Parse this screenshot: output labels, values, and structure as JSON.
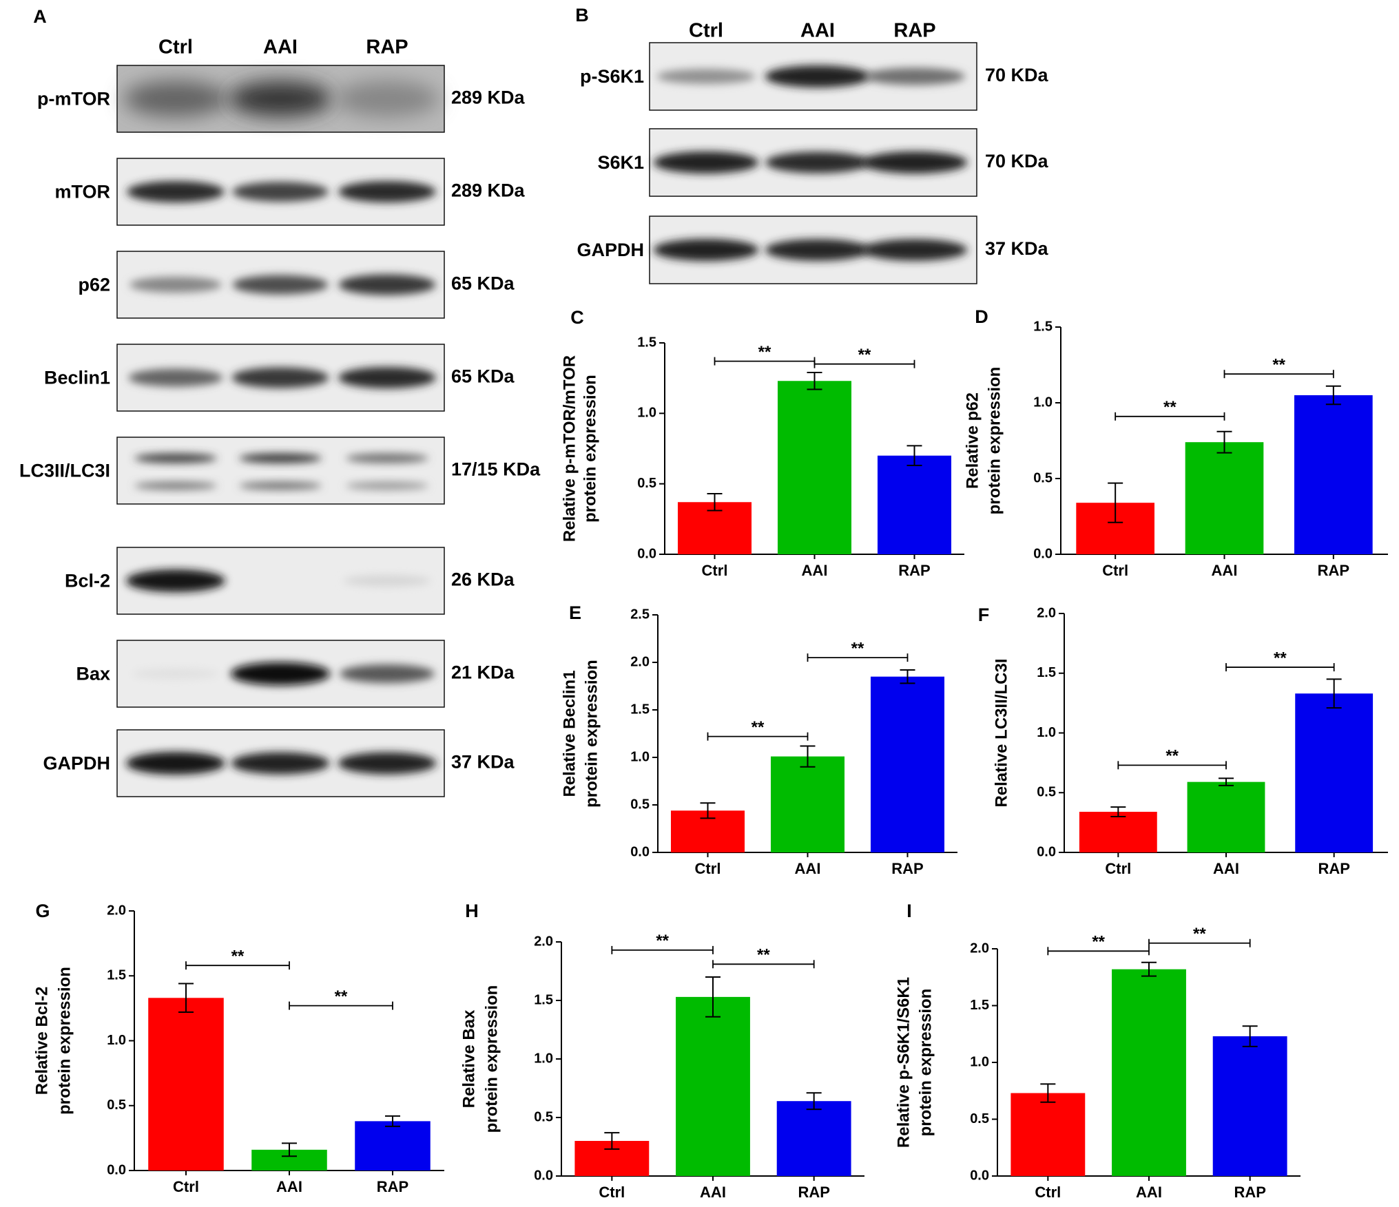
{
  "colors": {
    "Ctrl": "#ff0000",
    "AAI": "#00bb00",
    "RAP": "#0000ee"
  },
  "blots": {
    "A": {
      "letter": "A",
      "columns": [
        "Ctrl",
        "AAI",
        "RAP"
      ],
      "rows": [
        {
          "label": "p-mTOR",
          "kda": "289 KDa",
          "intensity": [
            0.6,
            0.8,
            0.45
          ],
          "style": "diffuse"
        },
        {
          "label": "mTOR",
          "kda": "289 KDa",
          "intensity": [
            0.85,
            0.75,
            0.85
          ],
          "style": "band"
        },
        {
          "label": "p62",
          "kda": "65 KDa",
          "intensity": [
            0.45,
            0.7,
            0.8
          ],
          "style": "band"
        },
        {
          "label": "Beclin1",
          "kda": "65 KDa",
          "intensity": [
            0.6,
            0.8,
            0.85
          ],
          "style": "band"
        },
        {
          "label": "LC3II/LC3I",
          "kda": "17/15 KDa",
          "intensity": [
            0.75,
            0.8,
            0.55
          ],
          "style": "double"
        },
        {
          "label": "Bcl-2",
          "kda": "26 KDa",
          "intensity": [
            0.95,
            0.0,
            0.1
          ],
          "style": "band"
        },
        {
          "label": "Bax",
          "kda": "21 KDa",
          "intensity": [
            0.05,
            0.98,
            0.65
          ],
          "style": "band"
        },
        {
          "label": "GAPDH",
          "kda": "37 KDa",
          "intensity": [
            0.95,
            0.9,
            0.9
          ],
          "style": "band"
        }
      ]
    },
    "B": {
      "letter": "B",
      "columns": [
        "Ctrl",
        "AAI",
        "RAP"
      ],
      "rows": [
        {
          "label": "p-S6K1",
          "kda": "70 KDa",
          "intensity": [
            0.4,
            0.9,
            0.55
          ],
          "style": "band"
        },
        {
          "label": "S6K1",
          "kda": "70 KDa",
          "intensity": [
            0.9,
            0.85,
            0.9
          ],
          "style": "band"
        },
        {
          "label": "GAPDH",
          "kda": "37 KDa",
          "intensity": [
            0.9,
            0.88,
            0.88
          ],
          "style": "band"
        }
      ]
    }
  },
  "chart_data": [
    {
      "id": "C",
      "type": "bar",
      "categories": [
        "Ctrl",
        "AAI",
        "RAP"
      ],
      "values": [
        0.37,
        1.23,
        0.7
      ],
      "errors": [
        0.06,
        0.06,
        0.07
      ],
      "ylabel": [
        "Relative p-mTOR/mTOR",
        "protein expression"
      ],
      "ylim": [
        0,
        1.5
      ],
      "ticks": [
        "0.0",
        "0.5",
        "1.0",
        "1.5"
      ],
      "sig": [
        {
          "from": 0,
          "to": 1,
          "label": "**",
          "y": 1.37
        },
        {
          "from": 1,
          "to": 2,
          "label": "**",
          "y": 1.35
        }
      ]
    },
    {
      "id": "D",
      "type": "bar",
      "categories": [
        "Ctrl",
        "AAI",
        "RAP"
      ],
      "values": [
        0.34,
        0.74,
        1.05
      ],
      "errors": [
        0.13,
        0.07,
        0.06
      ],
      "ylabel": [
        "Relative  p62",
        "protein expression"
      ],
      "ylim": [
        0,
        1.5
      ],
      "ticks": [
        "0.0",
        "0.5",
        "1.0",
        "1.5"
      ],
      "sig": [
        {
          "from": 0,
          "to": 1,
          "label": "**",
          "y": 0.91
        },
        {
          "from": 1,
          "to": 2,
          "label": "**",
          "y": 1.19
        }
      ]
    },
    {
      "id": "E",
      "type": "bar",
      "categories": [
        "Ctrl",
        "AAI",
        "RAP"
      ],
      "values": [
        0.44,
        1.01,
        1.85
      ],
      "errors": [
        0.08,
        0.11,
        0.07
      ],
      "ylabel": [
        "Relative  Beclin1",
        "protein expression"
      ],
      "ylim": [
        0,
        2.5
      ],
      "ticks": [
        "0.0",
        "0.5",
        "1.0",
        "1.5",
        "2.0",
        "2.5"
      ],
      "sig": [
        {
          "from": 0,
          "to": 1,
          "label": "**",
          "y": 1.22
        },
        {
          "from": 1,
          "to": 2,
          "label": "**",
          "y": 2.05
        }
      ]
    },
    {
      "id": "F",
      "type": "bar",
      "categories": [
        "Ctrl",
        "AAI",
        "RAP"
      ],
      "values": [
        0.34,
        0.59,
        1.33
      ],
      "errors": [
        0.04,
        0.03,
        0.12
      ],
      "ylabel": [
        "Relative LC3II/LC3I"
      ],
      "ylim": [
        0,
        2.0
      ],
      "ticks": [
        "0.0",
        "0.5",
        "1.0",
        "1.5",
        "2.0"
      ],
      "sig": [
        {
          "from": 0,
          "to": 1,
          "label": "**",
          "y": 0.73
        },
        {
          "from": 1,
          "to": 2,
          "label": "**",
          "y": 1.55
        }
      ]
    },
    {
      "id": "G",
      "type": "bar",
      "categories": [
        "Ctrl",
        "AAI",
        "RAP"
      ],
      "values": [
        1.33,
        0.16,
        0.38
      ],
      "errors": [
        0.11,
        0.05,
        0.04
      ],
      "ylabel": [
        "Relative  Bcl-2",
        "protein expression"
      ],
      "ylim": [
        0,
        2.0
      ],
      "ticks": [
        "0.0",
        "0.5",
        "1.0",
        "1.5",
        "2.0"
      ],
      "sig": [
        {
          "from": 0,
          "to": 1,
          "label": "**",
          "y": 1.58
        },
        {
          "from": 1,
          "to": 2,
          "label": "**",
          "y": 1.27
        }
      ]
    },
    {
      "id": "H",
      "type": "bar",
      "categories": [
        "Ctrl",
        "AAI",
        "RAP"
      ],
      "values": [
        0.3,
        1.53,
        0.64
      ],
      "errors": [
        0.07,
        0.17,
        0.07
      ],
      "ylabel": [
        "Relative  Bax",
        "protein expression"
      ],
      "ylim": [
        0,
        2.0
      ],
      "ticks": [
        "0.0",
        "0.5",
        "1.0",
        "1.5",
        "2.0"
      ],
      "sig": [
        {
          "from": 0,
          "to": 1,
          "label": "**",
          "y": 1.93
        },
        {
          "from": 1,
          "to": 2,
          "label": "**",
          "y": 1.81
        }
      ]
    },
    {
      "id": "I",
      "type": "bar",
      "categories": [
        "Ctrl",
        "AAI",
        "RAP"
      ],
      "values": [
        0.73,
        1.82,
        1.23
      ],
      "errors": [
        0.08,
        0.06,
        0.09
      ],
      "ylabel": [
        "Relative p-S6K1/S6K1",
        "protein expression"
      ],
      "ylim": [
        0,
        2.0
      ],
      "ticks": [
        "0.0",
        "0.5",
        "1.0",
        "1.5",
        "2.0"
      ],
      "sig": [
        {
          "from": 0,
          "to": 1,
          "label": "**",
          "y": 1.98
        },
        {
          "from": 1,
          "to": 2,
          "label": "**",
          "y": 2.05
        }
      ]
    }
  ]
}
